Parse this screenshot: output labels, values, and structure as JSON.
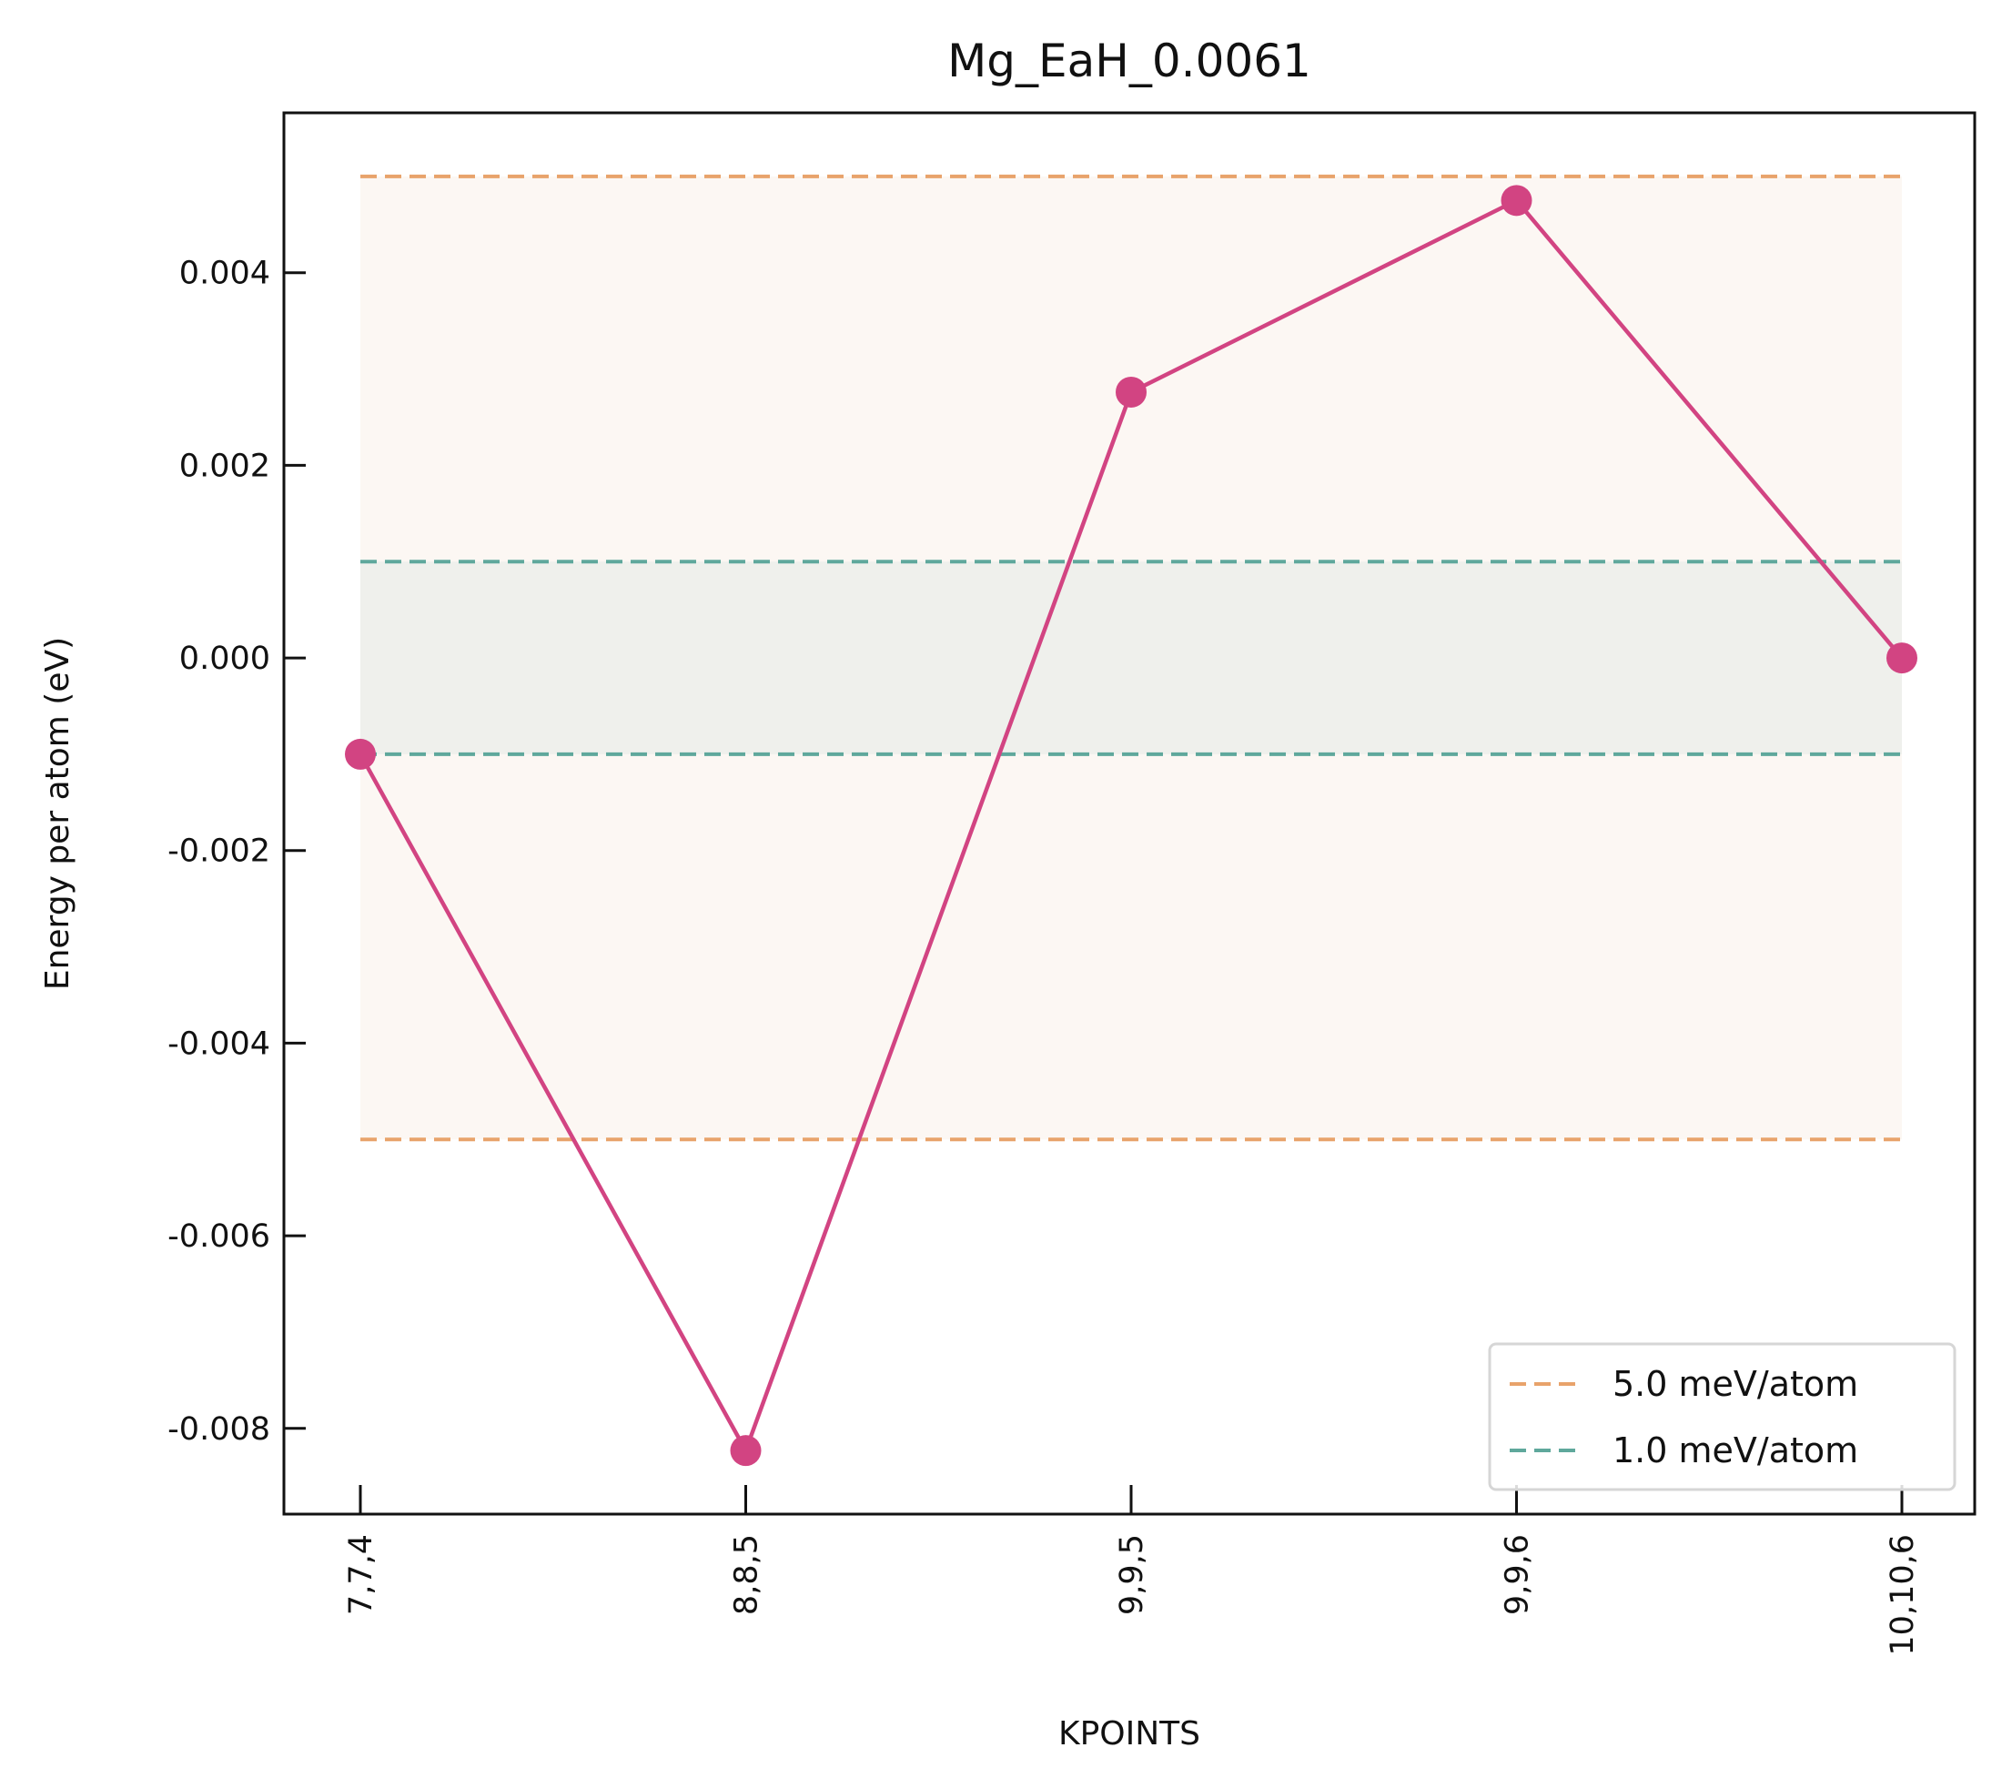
{
  "chart_data": {
    "type": "line",
    "title": "Mg_EaH_0.0061",
    "xlabel": "KPOINTS",
    "ylabel": "Energy per atom (eV)",
    "categories": [
      "7,7,4",
      "8,8,5",
      "9,9,5",
      "9,9,6",
      "10,10,6"
    ],
    "series": [
      {
        "values": [
          -0.001,
          -0.00823,
          0.00276,
          0.00475,
          0.0
        ],
        "color": "#d24482",
        "marker": "circle"
      }
    ],
    "ylim": [
      -0.00889,
      0.00566
    ],
    "yticks": [
      0.004,
      0.002,
      0.0,
      -0.002,
      -0.004,
      -0.006,
      -0.008
    ],
    "ytick_labels": [
      "0.004",
      "0.002",
      "0.000",
      "-0.002",
      "-0.004",
      "-0.006",
      "-0.008"
    ],
    "bands": [
      {
        "name": "5.0 meV/atom",
        "low": -0.005,
        "high": 0.005,
        "line_color": "#e8a36b",
        "fill_color": "#fcf7f3"
      },
      {
        "name": "1.0 meV/atom",
        "low": -0.001,
        "high": 0.001,
        "line_color": "#5fa89c",
        "fill_color": "#eff0ec"
      }
    ],
    "legend": {
      "position": "lower-right",
      "entries": [
        "5.0 meV/atom",
        "1.0 meV/atom"
      ]
    },
    "grid": false
  }
}
